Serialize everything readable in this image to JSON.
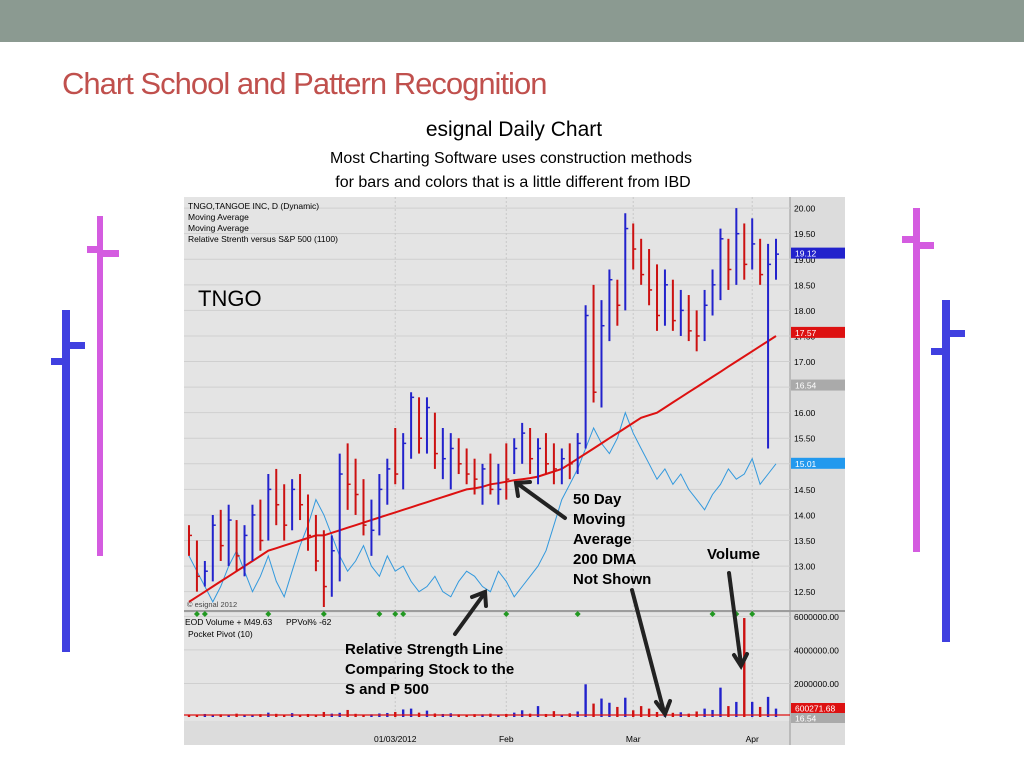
{
  "slide": {
    "title": "Chart School and Pattern Recognition",
    "subtitle": "esignal Daily Chart",
    "line1": "Most Charting Software uses construction methods",
    "line2": "for bars and colors that is a little different from IBD"
  },
  "chart_header": {
    "lines": [
      "TNGO,TANGOE INC, D (Dynamic)",
      "Moving Average",
      "Moving Average",
      "Relative Strenth versus S&P 500 (1100)"
    ],
    "symbol_label": "TNGO",
    "copyright": "© esignal 2012"
  },
  "volume_header": {
    "line1": "EOD Volume + M49.63",
    "ppvol": "PPVol%  -62",
    "line2": "Pocket Pivot (10)"
  },
  "annotations": {
    "ma_line1": "50 Day",
    "ma_line2": "Moving",
    "ma_line3": "Average",
    "ma_line4": "200 DMA",
    "ma_line5": "Not Shown",
    "volume": "Volume",
    "rs_line1": "Relative Strength Line",
    "rs_line2": "Comparing Stock to the",
    "rs_line3": "S and P 500"
  },
  "colors": {
    "up_bar": "#2222cc",
    "down_bar": "#cc1111",
    "moving_average": "#dd1111",
    "rs_line": "#3399dd",
    "slide_title": "#c0504d",
    "top_bar": "#8b9a91",
    "deco_magenta": "#d45ce0",
    "deco_blue": "#4040e0"
  },
  "chart_data": {
    "type": "ohlc",
    "price_axis": {
      "ylim": [
        12.2,
        20.1
      ],
      "ticks": [
        "20.00",
        "19.50",
        "19.00",
        "18.50",
        "18.00",
        "17.50",
        "17.00",
        "16.50",
        "16.00",
        "15.50",
        "15.00",
        "14.50",
        "14.00",
        "13.50",
        "13.00",
        "12.50"
      ]
    },
    "price_tags": [
      {
        "label": "19.12",
        "value": 19.12,
        "color": "#2222cc"
      },
      {
        "label": "17.57",
        "value": 17.57,
        "color": "#dd1111"
      },
      {
        "label": "16.54",
        "value": 16.54,
        "color": "#aaaaaa"
      },
      {
        "label": "15.01",
        "value": 15.01,
        "color": "#2299ee"
      }
    ],
    "x_labels": [
      {
        "label": "01/03/2012",
        "index": 26
      },
      {
        "label": "Feb",
        "index": 40
      },
      {
        "label": "Mar",
        "index": 56
      },
      {
        "label": "Apr",
        "index": 71
      }
    ],
    "bars": [
      [
        13.8,
        13.2,
        13.6,
        0
      ],
      [
        13.5,
        12.5,
        12.8,
        0
      ],
      [
        13.1,
        12.6,
        12.9,
        1
      ],
      [
        14.0,
        12.7,
        13.8,
        1
      ],
      [
        14.1,
        13.1,
        13.4,
        0
      ],
      [
        14.2,
        13.0,
        13.9,
        1
      ],
      [
        13.9,
        12.9,
        13.2,
        0
      ],
      [
        13.8,
        12.8,
        13.6,
        1
      ],
      [
        14.2,
        13.1,
        14.0,
        1
      ],
      [
        14.3,
        13.3,
        13.5,
        0
      ],
      [
        14.8,
        13.5,
        14.5,
        1
      ],
      [
        14.9,
        13.8,
        14.2,
        0
      ],
      [
        14.6,
        13.5,
        13.8,
        0
      ],
      [
        14.7,
        13.7,
        14.5,
        1
      ],
      [
        14.8,
        13.9,
        14.2,
        0
      ],
      [
        14.4,
        13.3,
        13.6,
        0
      ],
      [
        14.0,
        12.9,
        13.1,
        0
      ],
      [
        13.7,
        12.2,
        12.6,
        0
      ],
      [
        13.6,
        12.4,
        13.3,
        1
      ],
      [
        15.2,
        12.7,
        14.8,
        1
      ],
      [
        15.4,
        14.1,
        14.6,
        0
      ],
      [
        15.1,
        14.0,
        14.4,
        0
      ],
      [
        14.7,
        13.6,
        13.8,
        0
      ],
      [
        14.3,
        13.2,
        13.7,
        1
      ],
      [
        14.8,
        13.6,
        14.5,
        1
      ],
      [
        15.1,
        14.2,
        14.9,
        1
      ],
      [
        15.7,
        14.6,
        14.8,
        0
      ],
      [
        15.6,
        14.5,
        15.4,
        1
      ],
      [
        16.4,
        15.1,
        16.3,
        1
      ],
      [
        16.3,
        15.2,
        15.5,
        0
      ],
      [
        16.3,
        15.2,
        16.1,
        1
      ],
      [
        16.0,
        14.9,
        15.2,
        0
      ],
      [
        15.7,
        14.7,
        15.1,
        1
      ],
      [
        15.6,
        14.5,
        15.3,
        1
      ],
      [
        15.5,
        14.8,
        15.0,
        0
      ],
      [
        15.3,
        14.6,
        14.8,
        0
      ],
      [
        15.1,
        14.4,
        14.7,
        0
      ],
      [
        15.0,
        14.2,
        14.9,
        1
      ],
      [
        15.2,
        14.4,
        14.5,
        0
      ],
      [
        15.0,
        14.2,
        14.5,
        1
      ],
      [
        15.4,
        14.3,
        14.7,
        0
      ],
      [
        15.5,
        14.8,
        15.3,
        1
      ],
      [
        15.8,
        15.0,
        15.6,
        1
      ],
      [
        15.7,
        14.8,
        15.1,
        0
      ],
      [
        15.5,
        14.6,
        15.3,
        1
      ],
      [
        15.6,
        14.8,
        15.0,
        0
      ],
      [
        15.4,
        14.6,
        14.9,
        0
      ],
      [
        15.3,
        14.6,
        15.1,
        1
      ],
      [
        15.4,
        14.7,
        15.0,
        0
      ],
      [
        15.6,
        14.8,
        15.4,
        1
      ],
      [
        18.1,
        15.3,
        17.9,
        1
      ],
      [
        18.5,
        16.2,
        16.4,
        0
      ],
      [
        18.2,
        16.1,
        17.7,
        1
      ],
      [
        18.8,
        17.4,
        18.6,
        1
      ],
      [
        18.6,
        17.7,
        18.1,
        0
      ],
      [
        19.9,
        18.0,
        19.6,
        1
      ],
      [
        19.7,
        18.8,
        19.2,
        0
      ],
      [
        19.4,
        18.5,
        18.7,
        0
      ],
      [
        19.2,
        18.1,
        18.4,
        0
      ],
      [
        18.9,
        17.6,
        17.9,
        0
      ],
      [
        18.8,
        17.7,
        18.5,
        1
      ],
      [
        18.6,
        17.6,
        17.8,
        0
      ],
      [
        18.4,
        17.5,
        18.0,
        1
      ],
      [
        18.3,
        17.4,
        17.6,
        0
      ],
      [
        18.0,
        17.2,
        17.5,
        0
      ],
      [
        18.4,
        17.4,
        18.1,
        1
      ],
      [
        18.8,
        17.9,
        18.5,
        1
      ],
      [
        19.6,
        18.2,
        19.4,
        1
      ],
      [
        19.4,
        18.4,
        18.8,
        0
      ],
      [
        20.0,
        18.5,
        19.5,
        1
      ],
      [
        19.7,
        18.6,
        18.9,
        0
      ],
      [
        19.8,
        18.8,
        19.3,
        1
      ],
      [
        19.4,
        18.5,
        18.7,
        0
      ],
      [
        19.3,
        15.3,
        18.9,
        1
      ],
      [
        19.4,
        18.6,
        19.1,
        1
      ]
    ],
    "moving_average": [
      12.3,
      12.4,
      12.5,
      12.6,
      12.7,
      12.8,
      12.9,
      13.0,
      13.1,
      13.2,
      13.3,
      13.35,
      13.4,
      13.45,
      13.5,
      13.55,
      13.6,
      13.6,
      13.65,
      13.7,
      13.75,
      13.8,
      13.85,
      13.9,
      13.95,
      14.0,
      14.05,
      14.1,
      14.15,
      14.2,
      14.25,
      14.3,
      14.35,
      14.4,
      14.45,
      14.5,
      14.52,
      14.55,
      14.6,
      14.62,
      14.65,
      14.68,
      14.7,
      14.72,
      14.75,
      14.8,
      14.85,
      14.9,
      15.0,
      15.1,
      15.2,
      15.3,
      15.4,
      15.5,
      15.6,
      15.7,
      15.8,
      15.9,
      15.95,
      16.0,
      16.1,
      16.2,
      16.3,
      16.4,
      16.5,
      16.6,
      16.7,
      16.8,
      16.9,
      17.0,
      17.1,
      17.2,
      17.3,
      17.4,
      17.5
    ],
    "rs_line": [
      13.2,
      12.9,
      12.6,
      12.3,
      12.6,
      13.0,
      13.3,
      12.9,
      12.5,
      12.8,
      13.2,
      12.7,
      12.4,
      12.9,
      13.4,
      13.8,
      14.3,
      14.0,
      13.6,
      13.2,
      12.9,
      13.1,
      13.4,
      13.0,
      12.8,
      13.2,
      12.9,
      13.0,
      12.7,
      12.5,
      12.6,
      12.8,
      12.5,
      12.4,
      12.7,
      12.9,
      12.8,
      12.6,
      12.5,
      12.9,
      12.7,
      12.4,
      12.6,
      12.8,
      13.0,
      13.3,
      13.8,
      14.3,
      14.6,
      14.9,
      15.3,
      15.7,
      15.4,
      15.2,
      15.5,
      16.0,
      15.6,
      15.3,
      15.0,
      14.7,
      14.9,
      14.6,
      14.8,
      14.5,
      14.3,
      14.1,
      14.4,
      14.6,
      14.9,
      14.7,
      14.8,
      15.1,
      14.6,
      14.8,
      15.0
    ],
    "volume_axis": {
      "ylim": [
        0,
        6200000
      ],
      "ticks": [
        "6000000.00",
        "4000000.00",
        "2000000.00"
      ],
      "tags": [
        {
          "label": "600271.68",
          "color": "#dd1111"
        },
        {
          "label": "16.54",
          "color": "#aaaaaa"
        }
      ]
    },
    "volume": [
      150000,
      120000,
      180000,
      100000,
      160000,
      130000,
      200000,
      110000,
      140000,
      170000,
      260000,
      190000,
      120000,
      230000,
      150000,
      180000,
      120000,
      300000,
      200000,
      250000,
      420000,
      190000,
      130000,
      160000,
      210000,
      240000,
      300000,
      450000,
      500000,
      260000,
      380000,
      210000,
      180000,
      220000,
      160000,
      140000,
      170000,
      160000,
      200000,
      140000,
      180000,
      260000,
      400000,
      200000,
      650000,
      180000,
      350000,
      150000,
      220000,
      330000,
      1950000,
      800000,
      1100000,
      850000,
      600000,
      1150000,
      400000,
      650000,
      500000,
      300000,
      450000,
      250000,
      280000,
      200000,
      330000,
      500000,
      420000,
      1750000,
      650000,
      900000,
      5900000,
      900000,
      600000,
      1200000,
      500000
    ],
    "pocket_pivots": [
      1,
      2,
      10,
      17,
      24,
      26,
      27,
      40,
      49,
      66,
      69,
      71
    ]
  }
}
